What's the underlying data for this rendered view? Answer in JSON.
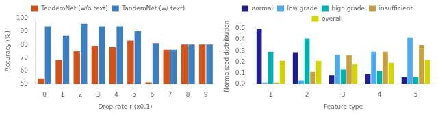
{
  "chart_data": [
    {
      "type": "bar",
      "categories": [
        "0",
        "1",
        "2",
        "3",
        "4",
        "5",
        "6",
        "7",
        "8",
        "9"
      ],
      "series": [
        {
          "name": "TandemNet (w/o text)",
          "color": "#d2521a",
          "values": [
            54,
            68,
            75,
            79,
            78,
            83,
            51,
            76,
            80,
            80
          ]
        },
        {
          "name": "TandemNet (w/ text)",
          "color": "#3d7ebf",
          "values": [
            94,
            87,
            96,
            94,
            94,
            90,
            81,
            76,
            80,
            80
          ]
        }
      ],
      "xlabel": "Drop rate r (x0.1)",
      "ylabel": "Accuracy (%)",
      "ylim": [
        50,
        100
      ],
      "yticks": [
        50,
        60,
        70,
        80,
        90,
        100
      ],
      "grid": false,
      "legend": "top"
    },
    {
      "type": "bar",
      "categories": [
        "1",
        "2",
        "3",
        "4",
        "5"
      ],
      "series": [
        {
          "name": "normal",
          "color": "#1f1f8f",
          "values": [
            0.5,
            0.285,
            0.075,
            0.09,
            0.062
          ]
        },
        {
          "name": "low grade",
          "color": "#4daaee",
          "values": [
            0.01,
            0.03,
            0.265,
            0.29,
            0.42
          ]
        },
        {
          "name": "high grade",
          "color": "#00b0b0",
          "values": [
            0.29,
            0.41,
            0.13,
            0.115,
            0.065
          ]
        },
        {
          "name": "insufficient",
          "color": "#c8a040",
          "values": [
            0.01,
            0.11,
            0.26,
            0.29,
            0.35
          ]
        },
        {
          "name": "overall",
          "color": "#d4d400",
          "values": [
            0.21,
            0.21,
            0.178,
            0.19,
            0.215
          ]
        }
      ],
      "xlabel": "Feature type",
      "ylabel": "Normalized distribution",
      "ylim": [
        0,
        0.5
      ],
      "yticks": [
        {
          "value": 0.0,
          "label": "0.0"
        },
        0.1,
        0.2,
        0.3,
        0.4,
        0.5
      ],
      "grid": false,
      "legend": "top"
    }
  ]
}
